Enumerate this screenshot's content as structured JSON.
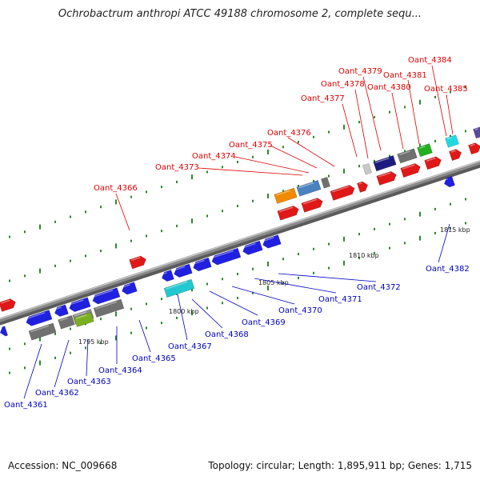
{
  "title": "Ochrobactrum anthropi ATCC 49188 chromosome 2, complete sequ...",
  "footer": {
    "accession": "Accession: NC_009668",
    "topology": "Topology: circular; Length: 1,895,911 bp; Genes: 1,715"
  },
  "colors": {
    "backbone": "#8a8a8a",
    "forward_label": "#e00000",
    "reverse_label": "#0000c0",
    "tick": "#2a8a2a"
  },
  "kbp_labels": [
    "1795 kbp",
    "1800 kbp",
    "1805 kbp",
    "1810 kbp",
    "1815 kbp"
  ],
  "forward_genes": [
    "Oant_4366",
    "Oant_4373",
    "Oant_4374",
    "Oant_4375",
    "Oant_4376",
    "Oant_4377",
    "Oant_4378",
    "Oant_4379",
    "Oant_4380",
    "Oant_4381",
    "Oant_4384",
    "Oant_4385"
  ],
  "reverse_genes": [
    "Oant_4361",
    "Oant_4362",
    "Oant_4363",
    "Oant_4364",
    "Oant_4365",
    "Oant_4367",
    "Oant_4368",
    "Oant_4369",
    "Oant_4370",
    "Oant_4371",
    "Oant_4372",
    "Oant_4382"
  ]
}
